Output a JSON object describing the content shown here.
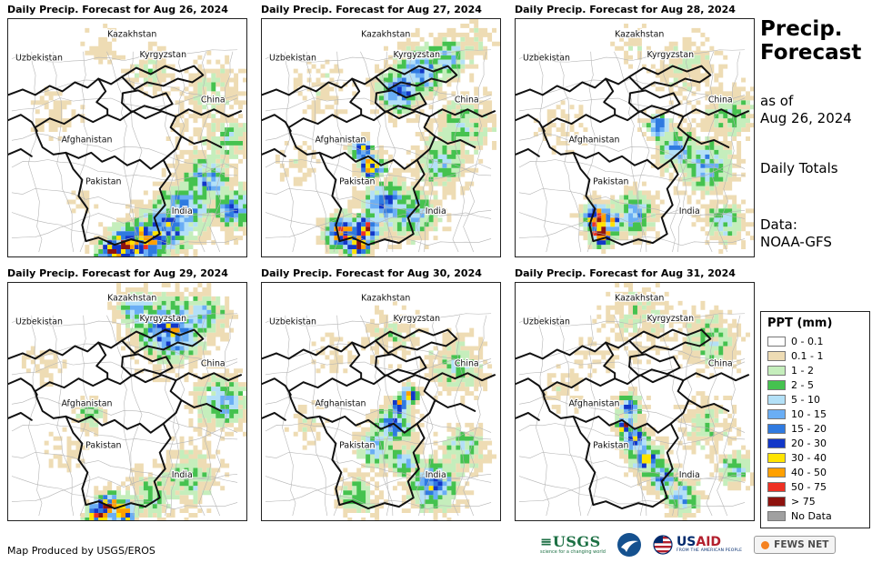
{
  "panels": [
    {
      "title": "Daily Precip. Forecast for Aug 26, 2024",
      "precip": [
        [
          0.44,
          0.98,
          0.07,
          11
        ],
        [
          0.5,
          0.95,
          0.09,
          10
        ],
        [
          0.58,
          0.93,
          0.1,
          9
        ],
        [
          0.66,
          0.88,
          0.13,
          7
        ],
        [
          0.74,
          0.8,
          0.13,
          6
        ],
        [
          0.83,
          0.68,
          0.12,
          5
        ],
        [
          0.95,
          0.8,
          0.1,
          6
        ],
        [
          0.92,
          0.5,
          0.12,
          3
        ],
        [
          0.85,
          0.3,
          0.14,
          2
        ],
        [
          0.6,
          0.22,
          0.1,
          2
        ],
        [
          0.4,
          0.12,
          0.1,
          1
        ],
        [
          0.2,
          0.4,
          0.12,
          1
        ],
        [
          0.75,
          0.45,
          0.1,
          1
        ],
        [
          0.3,
          0.75,
          0.08,
          1
        ]
      ]
    },
    {
      "title": "Daily Precip. Forecast for Aug 27, 2024",
      "precip": [
        [
          0.4,
          0.95,
          0.06,
          11
        ],
        [
          0.34,
          0.9,
          0.08,
          10
        ],
        [
          0.44,
          0.88,
          0.07,
          9
        ],
        [
          0.42,
          0.55,
          0.05,
          9
        ],
        [
          0.46,
          0.62,
          0.06,
          10
        ],
        [
          0.52,
          0.78,
          0.12,
          6
        ],
        [
          0.63,
          0.82,
          0.12,
          5
        ],
        [
          0.58,
          0.3,
          0.1,
          7
        ],
        [
          0.66,
          0.22,
          0.12,
          6
        ],
        [
          0.78,
          0.16,
          0.1,
          5
        ],
        [
          0.85,
          0.45,
          0.14,
          3
        ],
        [
          0.75,
          0.6,
          0.12,
          4
        ],
        [
          0.25,
          0.3,
          0.14,
          1
        ],
        [
          0.9,
          0.1,
          0.08,
          2
        ],
        [
          0.15,
          0.6,
          0.1,
          1
        ]
      ]
    },
    {
      "title": "Daily Precip. Forecast for Aug 28, 2024",
      "precip": [
        [
          0.36,
          0.9,
          0.06,
          11
        ],
        [
          0.34,
          0.84,
          0.07,
          10
        ],
        [
          0.4,
          0.86,
          0.06,
          9
        ],
        [
          0.5,
          0.82,
          0.1,
          5
        ],
        [
          0.6,
          0.45,
          0.06,
          7
        ],
        [
          0.68,
          0.55,
          0.1,
          5
        ],
        [
          0.8,
          0.62,
          0.12,
          5
        ],
        [
          0.9,
          0.4,
          0.12,
          3
        ],
        [
          0.72,
          0.2,
          0.14,
          2
        ],
        [
          0.5,
          0.12,
          0.1,
          1
        ],
        [
          0.2,
          0.45,
          0.12,
          1
        ],
        [
          0.88,
          0.85,
          0.1,
          4
        ]
      ]
    },
    {
      "title": "Daily Precip. Forecast for Aug 29, 2024",
      "precip": [
        [
          0.42,
          0.94,
          0.06,
          11
        ],
        [
          0.38,
          0.98,
          0.06,
          10
        ],
        [
          0.48,
          0.97,
          0.07,
          9
        ],
        [
          0.6,
          0.9,
          0.12,
          3
        ],
        [
          0.75,
          0.82,
          0.14,
          3
        ],
        [
          0.68,
          0.2,
          0.15,
          7
        ],
        [
          0.82,
          0.14,
          0.1,
          5
        ],
        [
          0.55,
          0.12,
          0.1,
          5
        ],
        [
          0.9,
          0.5,
          0.12,
          5
        ],
        [
          0.35,
          0.55,
          0.07,
          3
        ],
        [
          0.15,
          0.35,
          0.1,
          1
        ],
        [
          0.25,
          0.7,
          0.1,
          1
        ]
      ]
    },
    {
      "title": "Daily Precip. Forecast for Aug 30, 2024",
      "precip": [
        [
          0.58,
          0.52,
          0.04,
          10
        ],
        [
          0.62,
          0.47,
          0.04,
          9
        ],
        [
          0.55,
          0.6,
          0.09,
          6
        ],
        [
          0.48,
          0.7,
          0.09,
          5
        ],
        [
          0.6,
          0.75,
          0.08,
          5
        ],
        [
          0.72,
          0.85,
          0.12,
          6
        ],
        [
          0.85,
          0.7,
          0.1,
          4
        ],
        [
          0.82,
          0.35,
          0.13,
          3
        ],
        [
          0.55,
          0.22,
          0.12,
          2
        ],
        [
          0.3,
          0.3,
          0.1,
          1
        ],
        [
          0.2,
          0.6,
          0.1,
          1
        ],
        [
          0.4,
          0.9,
          0.1,
          3
        ]
      ]
    },
    {
      "title": "Daily Precip. Forecast for Aug 31, 2024",
      "precip": [
        [
          0.46,
          0.6,
          0.04,
          10
        ],
        [
          0.5,
          0.66,
          0.06,
          9
        ],
        [
          0.55,
          0.74,
          0.08,
          7
        ],
        [
          0.62,
          0.82,
          0.07,
          6
        ],
        [
          0.48,
          0.52,
          0.06,
          6
        ],
        [
          0.7,
          0.9,
          0.08,
          5
        ],
        [
          0.52,
          0.15,
          0.16,
          2
        ],
        [
          0.82,
          0.25,
          0.13,
          3
        ],
        [
          0.8,
          0.6,
          0.13,
          2
        ],
        [
          0.92,
          0.78,
          0.08,
          4
        ],
        [
          0.2,
          0.45,
          0.11,
          1
        ],
        [
          0.35,
          0.3,
          0.1,
          1
        ]
      ]
    }
  ],
  "countries": [
    {
      "name": "Kazakhstan",
      "fx": 0.52,
      "fy": 0.075
    },
    {
      "name": "Uzbekistan",
      "fx": 0.13,
      "fy": 0.175
    },
    {
      "name": "Kyrgyzstan",
      "fx": 0.65,
      "fy": 0.16
    },
    {
      "name": "China",
      "fx": 0.86,
      "fy": 0.35
    },
    {
      "name": "Afghanistan",
      "fx": 0.33,
      "fy": 0.52
    },
    {
      "name": "Pakistan",
      "fx": 0.4,
      "fy": 0.695
    },
    {
      "name": "India",
      "fx": 0.73,
      "fy": 0.82
    }
  ],
  "sidebar": {
    "title_line1": "Precip.",
    "title_line2": "Forecast",
    "asof_line1": "as of",
    "asof_line2": "Aug 26, 2024",
    "totals": "Daily Totals",
    "data_line1": "Data:",
    "data_line2": "NOAA-GFS"
  },
  "legend": {
    "title": "PPT (mm)",
    "items": [
      {
        "label": "0 - 0.1",
        "color": "#ffffff"
      },
      {
        "label": "0.1 - 1",
        "color": "#eedcb4"
      },
      {
        "label": "1 - 2",
        "color": "#c5eebc"
      },
      {
        "label": "2 - 5",
        "color": "#45c24f"
      },
      {
        "label": "5 - 10",
        "color": "#b3e0f7"
      },
      {
        "label": "10 - 15",
        "color": "#6aaef5"
      },
      {
        "label": "15 - 20",
        "color": "#2f7ae0"
      },
      {
        "label": "20 - 30",
        "color": "#1237c8"
      },
      {
        "label": "30 - 40",
        "color": "#ffe400"
      },
      {
        "label": "40 - 50",
        "color": "#ffa000"
      },
      {
        "label": "50 - 75",
        "color": "#ee3023"
      },
      {
        "label": "> 75",
        "color": "#8e120e"
      },
      {
        "label": "No Data",
        "color": "#a0a0a0"
      }
    ]
  },
  "footer": {
    "credit": "Map Produced by USGS/EROS"
  },
  "logos": {
    "usgs": {
      "text": "USGS",
      "tagline": "science for a changing world"
    },
    "noaa": {
      "icon": "noaa-circle-logo"
    },
    "usaid": {
      "text_us": "US",
      "text_aid": "AID",
      "tagline": "FROM THE AMERICAN PEOPLE"
    },
    "fewsnet": {
      "text": "FEWS NET"
    }
  }
}
